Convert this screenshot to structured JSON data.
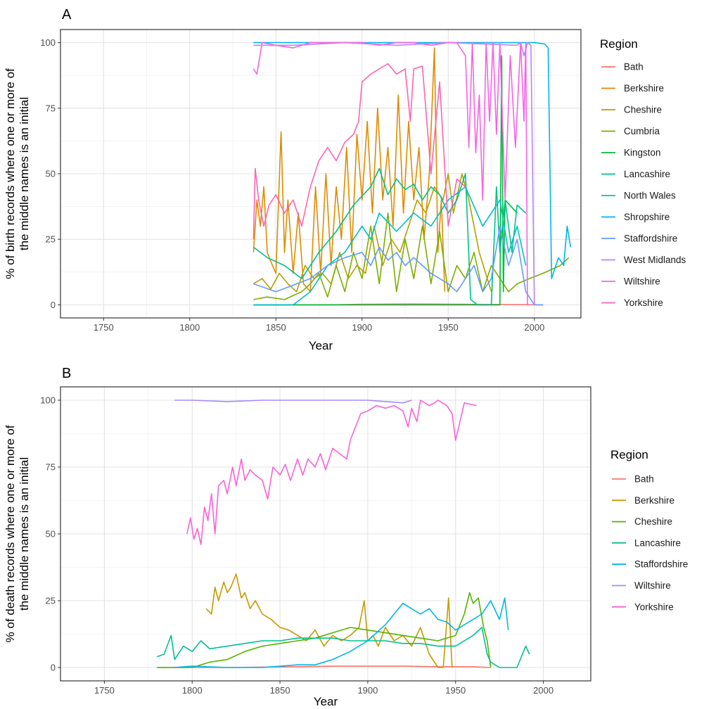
{
  "chart_data": [
    {
      "panel": "A",
      "type": "line",
      "xlabel": "Year",
      "ylabel": [
        "% of birth records where one or more of",
        "the middle names is an initial"
      ],
      "xlim": [
        1725,
        2027
      ],
      "ylim": [
        -5,
        105
      ],
      "xticks": [
        1750,
        1800,
        1850,
        1900,
        1950,
        2000
      ],
      "yticks": [
        0,
        25,
        50,
        75,
        100
      ],
      "grid": true,
      "legend": {
        "title": "Region",
        "position": "right"
      },
      "series": [
        {
          "name": "Bath",
          "color": "#F8766D",
          "x": [
            1837,
            1880,
            1900,
            1930,
            1960,
            2005
          ],
          "y": [
            0,
            0,
            0.2,
            0.3,
            0.2,
            0
          ]
        },
        {
          "name": "Berkshire",
          "color": "#DE8C00",
          "x": [
            1837,
            1839,
            1841,
            1843,
            1845,
            1848,
            1850,
            1853,
            1855,
            1857,
            1860,
            1863,
            1866,
            1870,
            1873,
            1876,
            1879,
            1882,
            1885,
            1888,
            1891,
            1894,
            1897,
            1900,
            1903,
            1906,
            1909,
            1912,
            1915,
            1918,
            1921,
            1924,
            1927,
            1930,
            1933,
            1936,
            1939,
            1942,
            1944,
            1946,
            1948
          ],
          "y": [
            20,
            40,
            30,
            45,
            20,
            15,
            12,
            66,
            20,
            40,
            12,
            35,
            8,
            5,
            45,
            12,
            50,
            15,
            45,
            25,
            60,
            20,
            65,
            40,
            70,
            35,
            75,
            40,
            60,
            30,
            80,
            35,
            70,
            40,
            60,
            25,
            50,
            98,
            20,
            40,
            5
          ]
        },
        {
          "name": "Cheshire",
          "color": "#B79F00",
          "x": [
            1837,
            1842,
            1847,
            1852,
            1857,
            1862,
            1867,
            1872,
            1877,
            1882,
            1887,
            1892,
            1897,
            1902,
            1907,
            1912,
            1917,
            1922,
            1927,
            1932,
            1937,
            1942,
            1947,
            1950,
            1953,
            1958,
            1962,
            1968,
            1975
          ],
          "y": [
            8,
            10,
            6,
            12,
            8,
            5,
            15,
            10,
            12,
            8,
            20,
            10,
            15,
            12,
            30,
            15,
            25,
            20,
            30,
            40,
            35,
            45,
            40,
            50,
            35,
            50,
            40,
            20,
            5
          ]
        },
        {
          "name": "Cumbria",
          "color": "#7CAE00",
          "x": [
            1837,
            1845,
            1855,
            1865,
            1870,
            1875,
            1880,
            1885,
            1890,
            1895,
            1900,
            1905,
            1910,
            1915,
            1920,
            1925,
            1930,
            1935,
            1940,
            1945,
            1950,
            1955,
            1960,
            1965,
            1970,
            1975,
            1980,
            1985,
            1990,
            1997,
            2005,
            2015,
            2020
          ],
          "y": [
            2,
            3,
            2,
            5,
            8,
            12,
            3,
            15,
            5,
            20,
            10,
            30,
            8,
            35,
            5,
            25,
            10,
            30,
            8,
            28,
            5,
            15,
            10,
            20,
            5,
            15,
            10,
            5,
            8,
            10,
            12,
            15,
            18
          ]
        },
        {
          "name": "Kingston",
          "color": "#00BA38",
          "x": [
            1837,
            1980,
            1981,
            1982,
            1983,
            1990
          ],
          "y": [
            0,
            0,
            95,
            5,
            40,
            35
          ]
        },
        {
          "name": "Lancashire",
          "color": "#00C08B",
          "x": [
            1837,
            1845,
            1855,
            1865,
            1875,
            1885,
            1895,
            1905,
            1910,
            1915,
            1920,
            1925,
            1930,
            1935,
            1940,
            1945,
            1950,
            1955,
            1960,
            1963,
            1967,
            1975,
            1978,
            1980,
            1983,
            1987,
            1990,
            1995
          ],
          "y": [
            22,
            18,
            15,
            10,
            20,
            28,
            38,
            45,
            52,
            42,
            48,
            44,
            46,
            40,
            45,
            42,
            35,
            40,
            50,
            2,
            0,
            0,
            45,
            20,
            40,
            20,
            38,
            35
          ]
        },
        {
          "name": "North Wales",
          "color": "#00BFC4",
          "x": [
            1837,
            1860,
            1870,
            1880,
            1890,
            1900,
            1905,
            1910,
            1920,
            1930,
            1940,
            1950,
            1960,
            1970,
            1980,
            1985,
            1990,
            1995
          ],
          "y": [
            0,
            0,
            5,
            15,
            20,
            30,
            25,
            35,
            28,
            35,
            30,
            40,
            45,
            30,
            40,
            20,
            30,
            15
          ]
        },
        {
          "name": "Shropshire",
          "color": "#00B4F0",
          "x": [
            1837,
            1900,
            1950,
            2000,
            2006,
            2008,
            2010,
            2014,
            2017,
            2019,
            2021
          ],
          "y": [
            100,
            100,
            100,
            100,
            99.5,
            98,
            10,
            18,
            15,
            30,
            22
          ]
        },
        {
          "name": "Staffordshire",
          "color": "#619CFF",
          "x": [
            1837,
            1850,
            1870,
            1880,
            1890,
            1900,
            1905,
            1910,
            1915,
            1920,
            1925,
            1930,
            1935,
            1940,
            1945,
            1950,
            1955,
            1960,
            1965,
            1970,
            1975,
            1980,
            1985,
            1990,
            1995,
            2000,
            2005
          ],
          "y": [
            8,
            5,
            10,
            15,
            18,
            20,
            15,
            22,
            17,
            20,
            15,
            18,
            15,
            12,
            10,
            8,
            5,
            10,
            15,
            5,
            10,
            30,
            15,
            25,
            5,
            0,
            0
          ]
        },
        {
          "name": "West Midlands",
          "color": "#B983FF",
          "x": [
            1837,
            1860,
            1890,
            1920,
            1950,
            1990,
            1992,
            1994,
            1996,
            1998,
            2000
          ],
          "y": [
            99,
            99,
            100,
            99,
            100,
            99,
            100,
            95,
            100,
            99,
            0
          ]
        },
        {
          "name": "Wiltshire",
          "color": "#F564E3",
          "x": [
            1837,
            1839,
            1842,
            1850,
            1860,
            1870,
            1880,
            1890,
            1900,
            1910,
            1920,
            1930,
            1940,
            1950,
            1955,
            1960,
            1962,
            1964,
            1966,
            1968,
            1970,
            1972,
            1974,
            1976,
            1978,
            1980,
            1983,
            1986,
            1989,
            1992,
            1994,
            1995,
            1996,
            1997
          ],
          "y": [
            90,
            88,
            100,
            99,
            98,
            100,
            100,
            100,
            100,
            99,
            100,
            100,
            99,
            100,
            100,
            95,
            60,
            100,
            58,
            80,
            40,
            100,
            70,
            100,
            65,
            100,
            40,
            95,
            60,
            100,
            70,
            100,
            0,
            0
          ]
        },
        {
          "name": "Yorkshire",
          "color": "#FF64B0",
          "x": [
            1837,
            1838,
            1840,
            1843,
            1846,
            1850,
            1855,
            1860,
            1865,
            1870,
            1875,
            1880,
            1885,
            1890,
            1895,
            1898,
            1900,
            1905,
            1910,
            1915,
            1920,
            1925,
            1928,
            1930,
            1935,
            1940,
            1945,
            1950,
            1955,
            1960
          ],
          "y": [
            25,
            52,
            40,
            30,
            38,
            42,
            35,
            40,
            30,
            45,
            55,
            60,
            55,
            62,
            65,
            70,
            85,
            88,
            90,
            92,
            88,
            90,
            70,
            90,
            91,
            50,
            85,
            30,
            48,
            45
          ]
        }
      ]
    },
    {
      "panel": "B",
      "type": "line",
      "xlabel": "Year",
      "ylabel": [
        "% of death records where one or more of",
        "the middle names is an initial"
      ],
      "xlim": [
        1725,
        2027
      ],
      "ylim": [
        -5,
        105
      ],
      "xticks": [
        1750,
        1800,
        1850,
        1900,
        1950,
        2000
      ],
      "yticks": [
        0,
        25,
        50,
        75,
        100
      ],
      "grid": true,
      "legend": {
        "title": "Region",
        "position": "right"
      },
      "series": [
        {
          "name": "Bath",
          "color": "#F8766D",
          "x": [
            1780,
            1820,
            1860,
            1880,
            1900,
            1920,
            1940,
            1960,
            1970
          ],
          "y": [
            0,
            0,
            0.3,
            0.5,
            0.5,
            0.5,
            0.3,
            0.3,
            0
          ]
        },
        {
          "name": "Berkshire",
          "color": "#C49A00",
          "x": [
            1808,
            1811,
            1813,
            1815,
            1818,
            1820,
            1822,
            1825,
            1828,
            1830,
            1833,
            1836,
            1840,
            1845,
            1850,
            1855,
            1860,
            1865,
            1870,
            1875,
            1880,
            1885,
            1890,
            1895,
            1898,
            1900,
            1903,
            1906,
            1910,
            1915,
            1920,
            1925,
            1930,
            1935,
            1940,
            1943,
            1946,
            1948
          ],
          "y": [
            22,
            20,
            30,
            25,
            32,
            28,
            30,
            35,
            26,
            28,
            22,
            25,
            20,
            18,
            15,
            14,
            12,
            10,
            14,
            8,
            12,
            10,
            12,
            15,
            25,
            10,
            12,
            8,
            15,
            10,
            12,
            8,
            15,
            5,
            0,
            0,
            26,
            0
          ]
        },
        {
          "name": "Cheshire",
          "color": "#53B400",
          "x": [
            1780,
            1790,
            1800,
            1810,
            1820,
            1830,
            1840,
            1850,
            1860,
            1870,
            1880,
            1890,
            1900,
            1910,
            1920,
            1930,
            1940,
            1950,
            1955,
            1958,
            1960,
            1963,
            1966,
            1968,
            1970
          ],
          "y": [
            0,
            0,
            0,
            2,
            3,
            6,
            8,
            9,
            10,
            11,
            13,
            15,
            14,
            13,
            12,
            11,
            10,
            12,
            20,
            28,
            24,
            26,
            15,
            10,
            0
          ]
        },
        {
          "name": "Lancashire",
          "color": "#00C094",
          "x": [
            1780,
            1784,
            1788,
            1790,
            1795,
            1800,
            1805,
            1810,
            1820,
            1830,
            1840,
            1850,
            1860,
            1870,
            1880,
            1890,
            1900,
            1910,
            1920,
            1930,
            1940,
            1950,
            1955,
            1960,
            1965,
            1968,
            1970,
            1975,
            1980,
            1985,
            1990,
            1992
          ],
          "y": [
            4,
            5,
            12,
            3,
            8,
            6,
            10,
            7,
            8,
            9,
            10,
            10,
            11,
            11,
            11,
            10,
            10,
            10,
            9,
            9,
            8,
            8,
            10,
            12,
            15,
            5,
            2,
            0,
            0,
            0,
            8,
            5
          ]
        },
        {
          "name": "Staffordshire",
          "color": "#00B6EB",
          "x": [
            1790,
            1800,
            1820,
            1840,
            1860,
            1870,
            1880,
            1890,
            1900,
            1910,
            1915,
            1920,
            1925,
            1930,
            1935,
            1940,
            1945,
            1950,
            1955,
            1960,
            1965,
            1970,
            1975,
            1978,
            1980
          ],
          "y": [
            0,
            0.5,
            0,
            0,
            1,
            1,
            3,
            6,
            10,
            16,
            20,
            24,
            22,
            20,
            22,
            18,
            17,
            14,
            16,
            18,
            20,
            25,
            18,
            26,
            14
          ]
        },
        {
          "name": "Wiltshire",
          "color": "#A58AFF",
          "x": [
            1790,
            1800,
            1820,
            1840,
            1860,
            1880,
            1900,
            1910,
            1920,
            1925
          ],
          "y": [
            100,
            100,
            99.5,
            100,
            100,
            100,
            100,
            99.5,
            99,
            100
          ]
        },
        {
          "name": "Yorkshire",
          "color": "#FB61D7",
          "x": [
            1797,
            1799,
            1801,
            1803,
            1805,
            1807,
            1809,
            1811,
            1813,
            1815,
            1818,
            1820,
            1823,
            1825,
            1828,
            1830,
            1833,
            1836,
            1840,
            1843,
            1846,
            1850,
            1853,
            1856,
            1860,
            1863,
            1866,
            1870,
            1873,
            1876,
            1880,
            1884,
            1888,
            1890,
            1893,
            1896,
            1900,
            1905,
            1910,
            1915,
            1920,
            1923,
            1925,
            1928,
            1930,
            1935,
            1938,
            1940,
            1945,
            1948,
            1950,
            1955,
            1962
          ],
          "y": [
            50,
            56,
            48,
            52,
            46,
            60,
            55,
            65,
            50,
            68,
            70,
            65,
            75,
            68,
            78,
            70,
            74,
            72,
            70,
            63,
            75,
            72,
            76,
            70,
            78,
            72,
            78,
            75,
            80,
            74,
            82,
            80,
            78,
            85,
            90,
            95,
            96,
            98,
            97,
            98,
            96,
            90,
            97,
            92,
            100,
            98,
            99,
            100,
            98,
            95,
            85,
            99,
            98
          ]
        }
      ]
    }
  ]
}
